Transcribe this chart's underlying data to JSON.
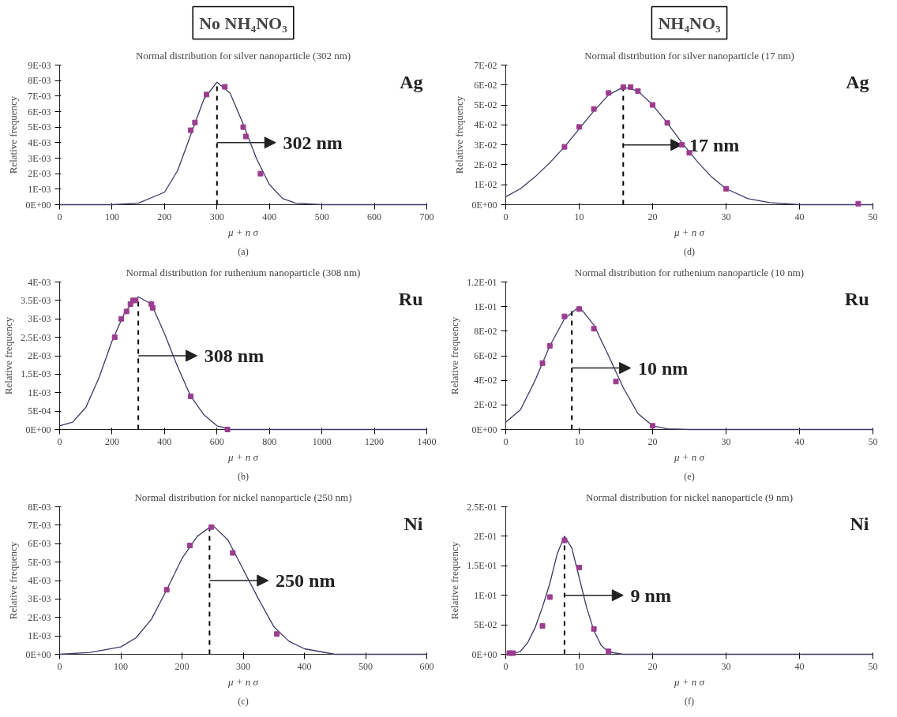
{
  "chart_data": [
    {
      "type": "line",
      "subtitle": "No NH₄NO₃",
      "title": "Normal distribution for silver nanoparticle (302 nm)",
      "xlabel": "μ + n σ",
      "ylabel": "Relative frequency",
      "xlim": [
        0,
        700
      ],
      "xticks": [
        0,
        100,
        200,
        300,
        400,
        500,
        600,
        700
      ],
      "ylim": [
        0,
        0.009
      ],
      "yticks": [
        {
          "value": 0,
          "label": "0E+00"
        },
        {
          "value": 0.001,
          "label": "1E-03"
        },
        {
          "value": 0.002,
          "label": "2E-03"
        },
        {
          "value": 0.003,
          "label": "3E-03"
        },
        {
          "value": 0.004,
          "label": "4E-03"
        },
        {
          "value": 0.005,
          "label": "5E-03"
        },
        {
          "value": 0.006,
          "label": "6E-03"
        },
        {
          "value": 0.007,
          "label": "7E-03"
        },
        {
          "value": 0.008,
          "label": "8E-03"
        },
        {
          "value": 0.009,
          "label": "9E-03"
        }
      ],
      "marker": "square",
      "series": [
        {
          "type": "line",
          "color": "#3a3a66",
          "line_style": "solid",
          "marker": "none",
          "x": [
            0,
            100,
            150,
            200,
            225,
            250,
            275,
            300,
            325,
            350,
            375,
            400,
            425,
            450,
            500,
            700
          ],
          "values": [
            0,
            0,
            0.0001,
            0.0008,
            0.0022,
            0.0045,
            0.0068,
            0.0079,
            0.0072,
            0.0052,
            0.003,
            0.0013,
            0.0004,
            0.0001,
            0,
            0
          ]
        },
        {
          "type": "scatter",
          "color": "#9b3d8f",
          "x": [
            250,
            258,
            280,
            315,
            350,
            355,
            383
          ],
          "values": [
            0.0048,
            0.0053,
            0.0071,
            0.0076,
            0.005,
            0.0044,
            0.002
          ]
        }
      ],
      "ref_lines": [
        {
          "axis": "x",
          "value": 300,
          "line_style": "dashed",
          "color": "#000000"
        }
      ],
      "annotations": [
        "Ag",
        {
          "text": "302 nm",
          "x": 300,
          "y": 0.004
        },
        "(a)"
      ]
    },
    {
      "type": "line",
      "subtitle": "NH₄NO₃",
      "title": "Normal distribution for silver nanoparticle (17 nm)",
      "xlabel": "μ + n σ",
      "ylabel": "Relative frequency",
      "xlim": [
        0,
        50
      ],
      "xticks": [
        0,
        10,
        20,
        30,
        40,
        50
      ],
      "ylim": [
        0,
        0.07
      ],
      "yticks": [
        {
          "value": 0,
          "label": "0E+00"
        },
        {
          "value": 0.01,
          "label": "1E-02"
        },
        {
          "value": 0.02,
          "label": "2E-02"
        },
        {
          "value": 0.03,
          "label": "3E-02"
        },
        {
          "value": 0.04,
          "label": "4E-02"
        },
        {
          "value": 0.05,
          "label": "5E-02"
        },
        {
          "value": 0.06,
          "label": "6E-02"
        },
        {
          "value": 0.07,
          "label": "7E-02"
        }
      ],
      "marker": "square",
      "series": [
        {
          "type": "line",
          "color": "#3a3a66",
          "line_style": "solid",
          "marker": "none",
          "x": [
            0,
            2,
            4,
            6,
            8,
            10,
            12,
            14,
            16,
            18,
            20,
            22,
            24,
            26,
            28,
            30,
            33,
            36,
            40,
            50
          ],
          "values": [
            0.004,
            0.008,
            0.014,
            0.021,
            0.029,
            0.038,
            0.047,
            0.055,
            0.059,
            0.057,
            0.05,
            0.041,
            0.031,
            0.022,
            0.014,
            0.008,
            0.003,
            0.001,
            0,
            0
          ]
        },
        {
          "type": "scatter",
          "color": "#9b3d8f",
          "x": [
            8,
            10,
            12,
            14,
            16,
            17,
            18,
            20,
            22,
            24,
            25,
            30,
            48
          ],
          "values": [
            0.029,
            0.039,
            0.048,
            0.056,
            0.059,
            0.059,
            0.057,
            0.05,
            0.041,
            0.03,
            0.026,
            0.008,
            0.0005
          ]
        }
      ],
      "ref_lines": [
        {
          "axis": "x",
          "value": 16,
          "line_style": "dashed",
          "color": "#000000"
        }
      ],
      "annotations": [
        "Ag",
        {
          "text": "17 nm",
          "x": 16,
          "y": 0.03
        },
        "(d)"
      ]
    },
    {
      "type": "line",
      "title": "Normal distribution for ruthenium nanoparticle (308 nm)",
      "xlabel": "μ + n σ",
      "ylabel": "Relative frequency",
      "xlim": [
        0,
        1400
      ],
      "xticks": [
        0,
        200,
        400,
        600,
        800,
        1000,
        1200,
        1400
      ],
      "ylim": [
        0,
        0.004
      ],
      "yticks": [
        {
          "value": 0,
          "label": "0E+00"
        },
        {
          "value": 0.0005,
          "label": "5E-04"
        },
        {
          "value": 0.001,
          "label": "1E-03"
        },
        {
          "value": 0.0015,
          "label": "1.5E-03"
        },
        {
          "value": 0.002,
          "label": "2E-03"
        },
        {
          "value": 0.0025,
          "label": "2.5E-03"
        },
        {
          "value": 0.003,
          "label": "3E-03"
        },
        {
          "value": 0.0035,
          "label": "3.5E-03"
        },
        {
          "value": 0.004,
          "label": "4E-03"
        }
      ],
      "marker": "square",
      "series": [
        {
          "type": "line",
          "color": "#3a3a66",
          "line_style": "solid",
          "marker": "none",
          "x": [
            0,
            50,
            100,
            150,
            200,
            250,
            300,
            350,
            400,
            450,
            500,
            550,
            600,
            650,
            1400
          ],
          "values": [
            0.0001,
            0.0002,
            0.0006,
            0.0014,
            0.0024,
            0.0032,
            0.0036,
            0.0034,
            0.0026,
            0.0017,
            0.0009,
            0.0004,
            0.0001,
            0,
            0
          ]
        },
        {
          "type": "scatter",
          "color": "#9b3d8f",
          "x": [
            210,
            235,
            255,
            270,
            280,
            290,
            350,
            355,
            500,
            640
          ],
          "values": [
            0.0025,
            0.003,
            0.0032,
            0.0034,
            0.0035,
            0.0035,
            0.0034,
            0.0033,
            0.0009,
            0
          ]
        }
      ],
      "ref_lines": [
        {
          "axis": "x",
          "value": 300,
          "line_style": "dashed",
          "color": "#000000"
        }
      ],
      "annotations": [
        "Ru",
        {
          "text": "308 nm",
          "x": 300,
          "y": 0.002
        },
        "(b)"
      ]
    },
    {
      "type": "line",
      "title": "Normal distribution for ruthenium nanoparticle (10 nm)",
      "xlabel": "μ + n σ",
      "ylabel": "Relative frequency",
      "xlim": [
        0,
        50
      ],
      "xticks": [
        0,
        10,
        20,
        30,
        40,
        50
      ],
      "ylim": [
        0,
        0.12
      ],
      "yticks": [
        {
          "value": 0,
          "label": "0E+00"
        },
        {
          "value": 0.02,
          "label": "2E-02"
        },
        {
          "value": 0.04,
          "label": "4E-02"
        },
        {
          "value": 0.06,
          "label": "6E-02"
        },
        {
          "value": 0.08,
          "label": "8E-02"
        },
        {
          "value": 0.1,
          "label": "1E-01"
        },
        {
          "value": 0.12,
          "label": "1.2E-01"
        }
      ],
      "marker": "square",
      "series": [
        {
          "type": "line",
          "color": "#3a3a66",
          "line_style": "solid",
          "marker": "none",
          "x": [
            0,
            2,
            4,
            6,
            8,
            10,
            12,
            14,
            16,
            18,
            20,
            22,
            25,
            50
          ],
          "values": [
            0.006,
            0.016,
            0.04,
            0.068,
            0.09,
            0.1,
            0.085,
            0.06,
            0.034,
            0.013,
            0.003,
            0.0005,
            0,
            0
          ]
        },
        {
          "type": "scatter",
          "color": "#9b3d8f",
          "x": [
            5,
            6,
            8,
            10,
            12,
            15,
            20
          ],
          "values": [
            0.054,
            0.068,
            0.092,
            0.098,
            0.082,
            0.039,
            0.003
          ]
        }
      ],
      "ref_lines": [
        {
          "axis": "x",
          "value": 9,
          "line_style": "dashed",
          "color": "#000000"
        }
      ],
      "annotations": [
        "Ru",
        {
          "text": "10 nm",
          "x": 9,
          "y": 0.05
        },
        "(e)"
      ]
    },
    {
      "type": "line",
      "title": "Normal distribution for nickel nanoparticle (250 nm)",
      "xlabel": "μ + n σ",
      "ylabel": "Relative frequency",
      "xlim": [
        0,
        600
      ],
      "xticks": [
        0,
        100,
        200,
        300,
        400,
        500,
        600
      ],
      "ylim": [
        0,
        0.008
      ],
      "yticks": [
        {
          "value": 0,
          "label": "0E+00"
        },
        {
          "value": 0.001,
          "label": "1E-03"
        },
        {
          "value": 0.002,
          "label": "2E-03"
        },
        {
          "value": 0.003,
          "label": "3E-03"
        },
        {
          "value": 0.004,
          "label": "4E-03"
        },
        {
          "value": 0.005,
          "label": "5E-03"
        },
        {
          "value": 0.006,
          "label": "6E-03"
        },
        {
          "value": 0.007,
          "label": "7E-03"
        },
        {
          "value": 0.008,
          "label": "8E-03"
        }
      ],
      "marker": "square",
      "series": [
        {
          "type": "line",
          "color": "#3a3a66",
          "line_style": "solid",
          "marker": "none",
          "x": [
            0,
            50,
            100,
            125,
            150,
            175,
            200,
            225,
            250,
            275,
            300,
            325,
            350,
            375,
            400,
            450,
            600
          ],
          "values": [
            0,
            0.0001,
            0.0004,
            0.0009,
            0.0019,
            0.0035,
            0.0052,
            0.0064,
            0.007,
            0.0062,
            0.0046,
            0.003,
            0.0015,
            0.0007,
            0.0003,
            0,
            0
          ]
        },
        {
          "type": "scatter",
          "color": "#9b3d8f",
          "x": [
            175,
            213,
            248,
            283,
            355
          ],
          "values": [
            0.0035,
            0.0059,
            0.0069,
            0.0055,
            0.0011
          ]
        }
      ],
      "ref_lines": [
        {
          "axis": "x",
          "value": 245,
          "line_style": "dashed",
          "color": "#000000"
        }
      ],
      "annotations": [
        "Ni",
        {
          "text": "250 nm",
          "x": 245,
          "y": 0.004
        },
        "(c)"
      ]
    },
    {
      "type": "line",
      "title": "Normal distribution for nickel nanoparticle (9 nm)",
      "xlabel": "μ + n σ",
      "ylabel": "Relative frequency",
      "xlim": [
        0,
        50
      ],
      "xticks": [
        0,
        10,
        20,
        30,
        40,
        50
      ],
      "ylim": [
        0,
        0.25
      ],
      "yticks": [
        {
          "value": 0,
          "label": "0E+00"
        },
        {
          "value": 0.05,
          "label": "5E-02"
        },
        {
          "value": 0.1,
          "label": "1E-01"
        },
        {
          "value": 0.15,
          "label": "1.5E-01"
        },
        {
          "value": 0.2,
          "label": "2E-01"
        },
        {
          "value": 0.25,
          "label": "2.5E-01"
        }
      ],
      "marker": "square",
      "series": [
        {
          "type": "line",
          "color": "#3a3a66",
          "line_style": "solid",
          "marker": "none",
          "x": [
            0,
            1,
            2,
            3,
            4,
            5,
            6,
            7,
            8,
            9,
            10,
            11,
            12,
            13,
            14,
            16,
            50
          ],
          "values": [
            0,
            0.001,
            0.005,
            0.02,
            0.045,
            0.08,
            0.12,
            0.17,
            0.2,
            0.18,
            0.13,
            0.08,
            0.04,
            0.015,
            0.004,
            0,
            0
          ]
        },
        {
          "type": "scatter",
          "color": "#9b3d8f",
          "x": [
            0.5,
            1,
            5,
            6,
            8,
            10,
            12,
            14
          ],
          "values": [
            0.002,
            0.002,
            0.048,
            0.097,
            0.193,
            0.147,
            0.043,
            0.005
          ]
        }
      ],
      "ref_lines": [
        {
          "axis": "x",
          "value": 8,
          "line_style": "dashed",
          "color": "#000000"
        }
      ],
      "annotations": [
        "Ni",
        {
          "text": "9 nm",
          "x": 8,
          "y": 0.1
        },
        "(f)"
      ]
    }
  ]
}
